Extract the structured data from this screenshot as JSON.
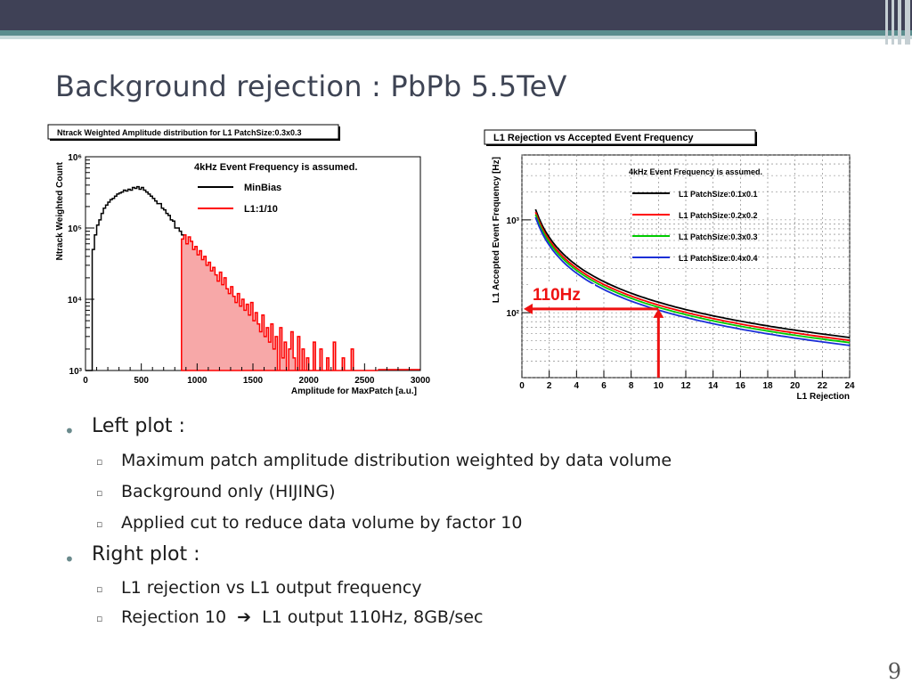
{
  "slide": {
    "title": "Background rejection : PbPb 5.5TeV",
    "page_number": "9"
  },
  "bullets": {
    "left_heading": "Left plot :",
    "left_items": [
      "Maximum patch amplitude distribution weighted by data volume",
      "Background only (HIJING)",
      "Applied cut to reduce data volume by factor 10"
    ],
    "right_heading": "Right plot :",
    "right_item1": "L1 rejection vs L1 output frequency",
    "right_item2_pre": "Rejection 10",
    "right_item2_post": "L1 output 110Hz,  8GB/sec"
  },
  "chart_data": [
    {
      "type": "histogram",
      "title": "Ntrack Weighted Amplitude distribution for L1 PatchSize:0.3x0.3",
      "xlabel": "Amplitude for MaxPatch [a.u.]",
      "ylabel": "Ntrack Weighted Count",
      "xlim": [
        0,
        3000
      ],
      "ylim": [
        1000,
        1000000
      ],
      "yscale": "log",
      "xticks": [
        "0",
        "500",
        "1000",
        "1500",
        "2000",
        "2500",
        "3000"
      ],
      "yticks": [
        "10³",
        "10⁴",
        "10⁵",
        "10⁶"
      ],
      "annotation": "4kHz Event Frequency is assumed.",
      "legend_position": "top-right",
      "series": [
        {
          "name": "MinBias",
          "color": "#000000",
          "x": [
            0,
            40,
            60,
            80,
            100,
            120,
            140,
            160,
            180,
            200,
            220,
            240,
            260,
            280,
            300,
            320,
            340,
            360,
            380,
            400,
            420,
            440,
            460,
            480,
            500,
            520,
            540,
            560,
            580,
            600,
            620,
            640,
            660,
            680,
            700,
            720,
            740,
            760,
            780,
            800,
            820,
            840,
            860
          ],
          "y": [
            1000,
            1000,
            50000,
            80000,
            110000,
            130000,
            160000,
            190000,
            210000,
            230000,
            250000,
            260000,
            280000,
            300000,
            310000,
            320000,
            340000,
            330000,
            350000,
            340000,
            370000,
            360000,
            380000,
            350000,
            370000,
            340000,
            320000,
            300000,
            280000,
            260000,
            240000,
            220000,
            220000,
            190000,
            180000,
            160000,
            150000,
            130000,
            125000,
            100000,
            100000,
            90000,
            80000
          ]
        },
        {
          "name": "L1:1/10",
          "color": "#ff0000",
          "x": [
            860,
            880,
            900,
            920,
            940,
            960,
            980,
            1000,
            1020,
            1040,
            1060,
            1080,
            1100,
            1120,
            1140,
            1160,
            1180,
            1200,
            1220,
            1240,
            1260,
            1280,
            1300,
            1320,
            1340,
            1360,
            1380,
            1400,
            1420,
            1440,
            1460,
            1480,
            1500,
            1520,
            1540,
            1560,
            1580,
            1600,
            1620,
            1640,
            1660,
            1680,
            1700,
            1720,
            1740,
            1760,
            1780,
            1800,
            1820,
            1840,
            1860,
            1880,
            1900,
            1920,
            1940,
            1960,
            1980,
            2000,
            2020,
            2040,
            2060,
            2080,
            2100,
            2120,
            2140,
            2160,
            2180,
            2200,
            2220,
            2240,
            2260,
            2280,
            2300,
            2320,
            2340,
            2360,
            2380,
            2400,
            2420,
            2440,
            2460,
            2480,
            2500,
            2520,
            2540,
            2560,
            2580,
            2600
          ],
          "y": [
            70000,
            80000,
            60000,
            75000,
            65000,
            50000,
            55000,
            42000,
            48000,
            36000,
            40000,
            30000,
            33000,
            25000,
            28000,
            22000,
            18000,
            24000,
            16000,
            20000,
            14000,
            12000,
            15000,
            11000,
            9000,
            12000,
            8000,
            10000,
            7000,
            8500,
            6000,
            9000,
            5000,
            6500,
            4500,
            3500,
            6000,
            3000,
            4000,
            2500,
            4500,
            2000,
            3000,
            1000,
            4000,
            1500,
            2500,
            1000,
            2000,
            3500,
            1500,
            1000,
            3000,
            1000,
            2000,
            1000,
            1500,
            1000,
            1000,
            2500,
            1000,
            1000,
            2000,
            1000,
            1000,
            1500,
            1000,
            1000,
            2500,
            1000,
            1000,
            1000,
            1500,
            1000,
            1000,
            1000,
            2000,
            1000,
            1000,
            1000,
            1000,
            1000,
            1000,
            1000,
            1000,
            1000,
            1000,
            1000
          ]
        }
      ]
    },
    {
      "type": "line",
      "title": "L1 Rejection vs Accepted Event Frequency",
      "xlabel": "L1 Rejection",
      "ylabel": "L1 Accepted Event Frequency [Hz]",
      "xlim": [
        0,
        24
      ],
      "ylim": [
        20,
        5000
      ],
      "yscale": "log",
      "xticks": [
        "0",
        "2",
        "4",
        "6",
        "8",
        "10",
        "12",
        "14",
        "16",
        "18",
        "20",
        "22",
        "24"
      ],
      "yticks": [
        "10²",
        "10³"
      ],
      "annotation": "4kHz Event Frequency is assumed.",
      "marker_label": "110Hz",
      "marker_x": 10,
      "marker_y": 110,
      "legend_position": "top-right",
      "series": [
        {
          "name": "L1 PatchSize:0.1x0.1",
          "color": "#000000",
          "factor": 1.18
        },
        {
          "name": "L1 PatchSize:0.2x0.2",
          "color": "#ff0000",
          "factor": 1.1
        },
        {
          "name": "L1 PatchSize:0.3x0.3",
          "color": "#00cc00",
          "factor": 1.04
        },
        {
          "name": "L1 PatchSize:0.4x0.4",
          "color": "#1a2fd6",
          "factor": 0.97
        }
      ]
    }
  ]
}
